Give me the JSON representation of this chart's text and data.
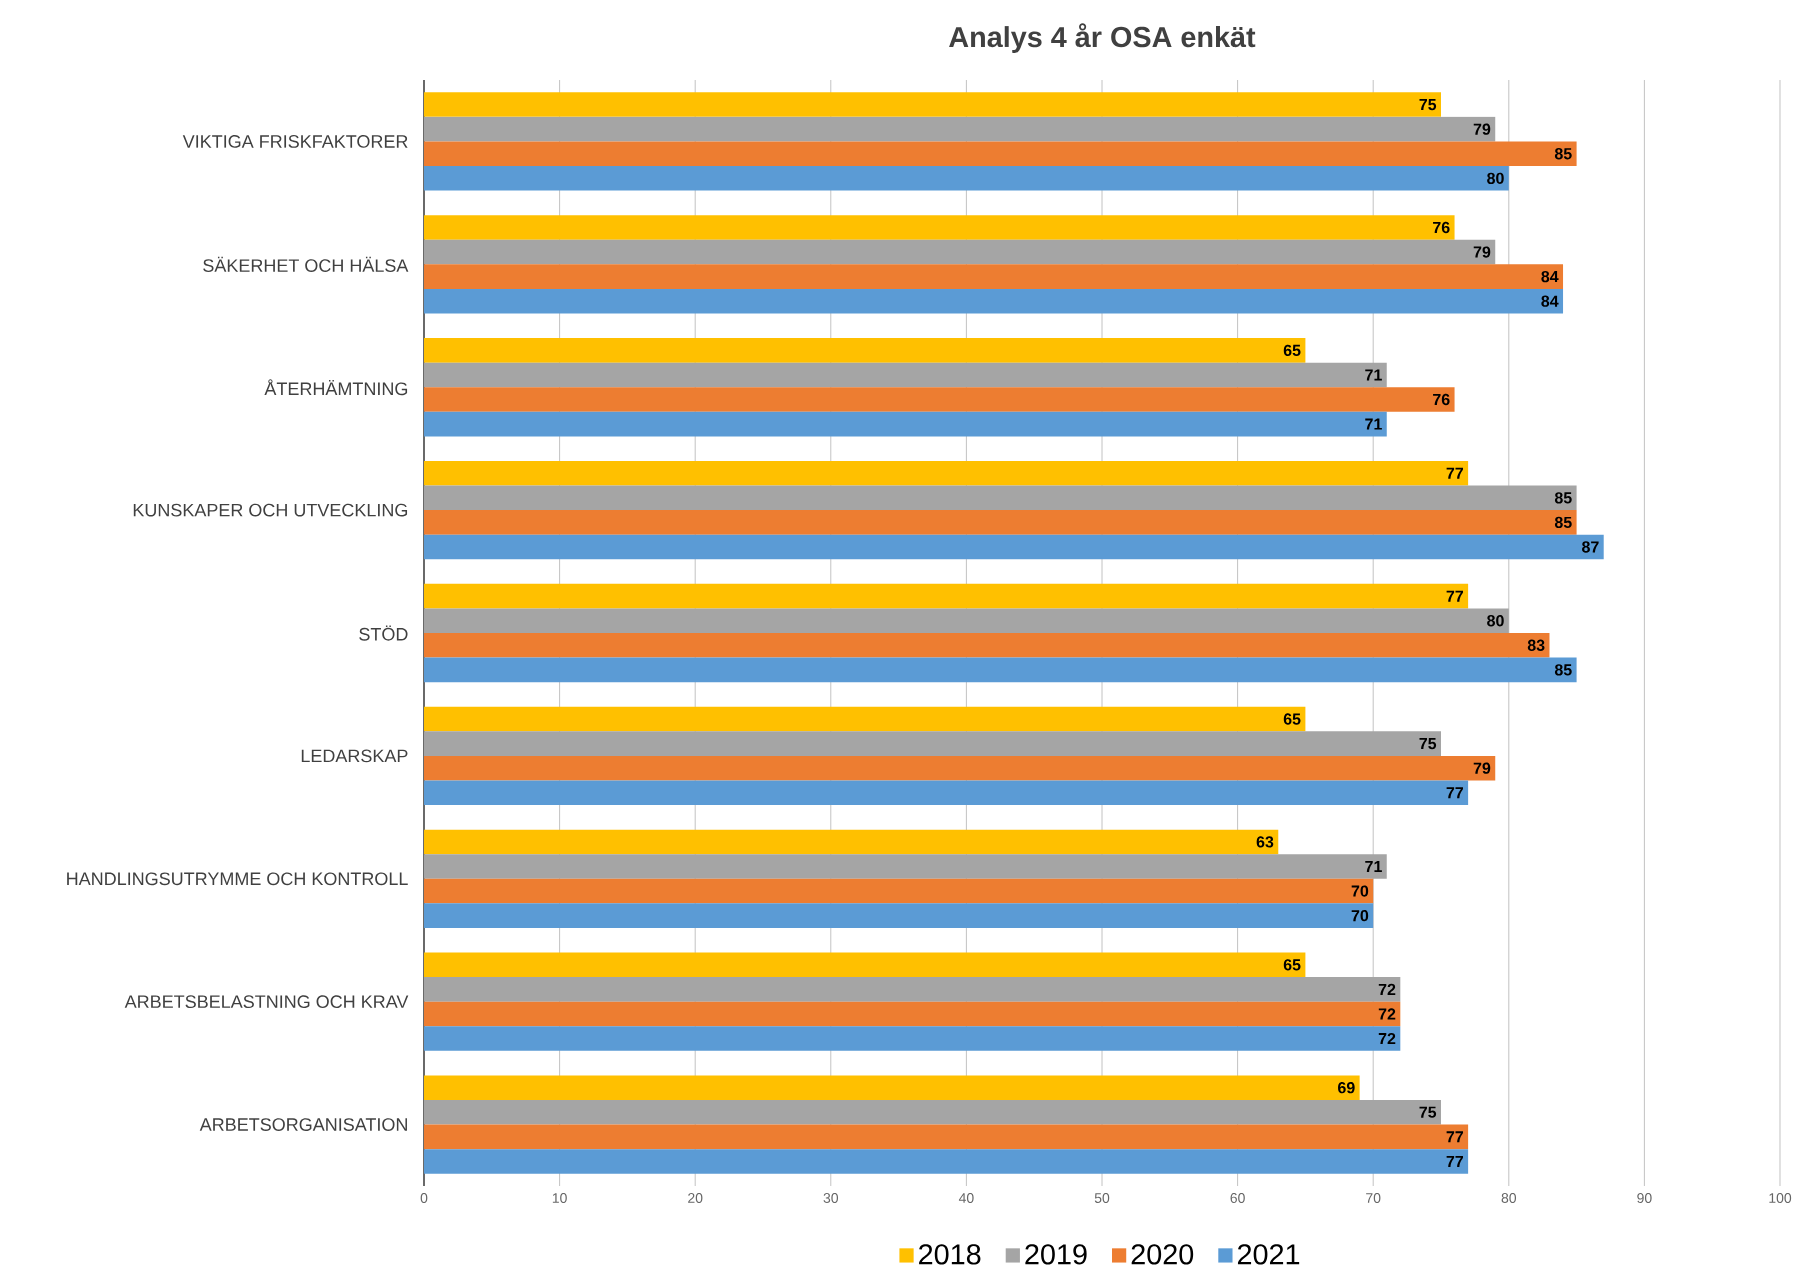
{
  "chart_data": {
    "type": "bar",
    "orientation": "horizontal",
    "title": "Analys 4 år OSA enkät",
    "categories": [
      "VIKTIGA FRISKFAKTORER",
      "SÄKERHET OCH HÄLSA",
      "ÅTERHÄMTNING",
      "KUNSKAPER OCH UTVECKLING",
      "STÖD",
      "LEDARSKAP",
      "HANDLINGSUTRYMME OCH KONTROLL",
      "ARBETSBELASTNING OCH KRAV",
      "ARBETSORGANISATION"
    ],
    "series": [
      {
        "name": "2018",
        "color": "#ffc000",
        "values": [
          75,
          76,
          65,
          77,
          77,
          65,
          63,
          65,
          69
        ]
      },
      {
        "name": "2019",
        "color": "#a5a5a5",
        "values": [
          79,
          79,
          71,
          85,
          80,
          75,
          71,
          72,
          75
        ]
      },
      {
        "name": "2020",
        "color": "#ed7d31",
        "values": [
          85,
          84,
          76,
          85,
          83,
          79,
          70,
          72,
          77
        ]
      },
      {
        "name": "2021",
        "color": "#5b9bd5",
        "values": [
          80,
          84,
          71,
          87,
          85,
          77,
          70,
          72,
          77
        ]
      }
    ],
    "xlim": [
      0,
      100
    ],
    "xticks": [
      0,
      10,
      20,
      30,
      40,
      50,
      60,
      70,
      80,
      90,
      100
    ],
    "grid": "x",
    "legend": "bottom",
    "data_labels": true
  }
}
